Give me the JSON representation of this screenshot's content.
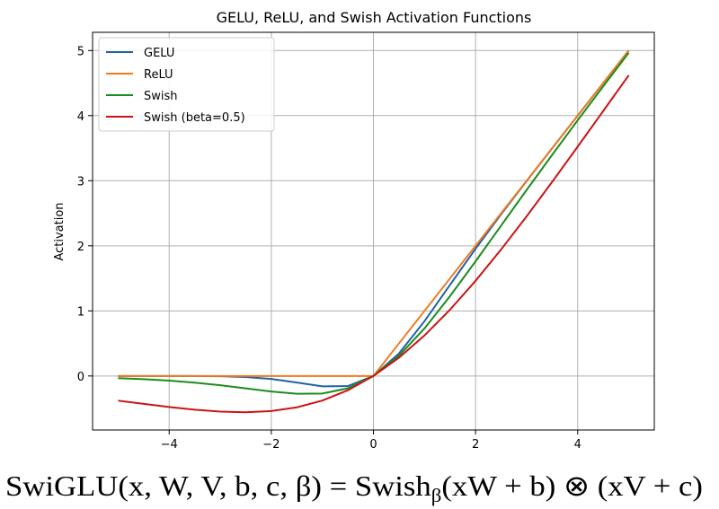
{
  "chart_data": {
    "type": "line",
    "title": "GELU, ReLU, and Swish Activation Functions",
    "ylabel": "Activation",
    "x": [
      -5,
      -4.5,
      -4,
      -3.5,
      -3,
      -2.5,
      -2,
      -1.5,
      -1,
      -0.5,
      0,
      0.5,
      1,
      1.5,
      2,
      2.5,
      3,
      3.5,
      4,
      4.5,
      5
    ],
    "series": [
      {
        "name": "GELU",
        "color": "#1f62a8",
        "values": [
          0,
          0,
          -0.0001,
          -0.0008,
          -0.004,
          -0.0155,
          -0.0455,
          -0.1002,
          -0.1587,
          -0.1543,
          0,
          0.3457,
          0.8413,
          1.3998,
          1.9545,
          2.4845,
          2.996,
          3.4992,
          3.9999,
          4.5,
          5
        ]
      },
      {
        "name": "ReLU",
        "color": "#f07a1e",
        "values": [
          0,
          0,
          0,
          0,
          0,
          0,
          0,
          0,
          0,
          0,
          0,
          0.5,
          1,
          1.5,
          2,
          2.5,
          3,
          3.5,
          4,
          4.5,
          5
        ]
      },
      {
        "name": "Swish",
        "color": "#1c8c1c",
        "values": [
          -0.0335,
          -0.0495,
          -0.0719,
          -0.1026,
          -0.1423,
          -0.1896,
          -0.2384,
          -0.2736,
          -0.2689,
          -0.1888,
          0,
          0.3112,
          0.7311,
          1.2264,
          1.7616,
          2.3104,
          2.8577,
          3.3974,
          3.9281,
          4.4505,
          4.9665
        ]
      },
      {
        "name": "Swish (beta=0.5)",
        "color": "#cc1414",
        "values": [
          -0.3793,
          -0.4288,
          -0.4768,
          -0.518,
          -0.5473,
          -0.5568,
          -0.5379,
          -0.4812,
          -0.3775,
          -0.2189,
          0,
          0.2811,
          0.6225,
          1.0188,
          1.4621,
          1.9432,
          2.4527,
          2.982,
          3.5232,
          4.0712,
          4.6207
        ]
      }
    ],
    "xlim": [
      -5.5,
      5.5
    ],
    "xticks": [
      {
        "value": -4,
        "label": "−4"
      },
      {
        "value": -2,
        "label": "−2"
      },
      0,
      2,
      4
    ],
    "ylim": [
      -0.83,
      5.28
    ],
    "yticks": [
      0,
      1,
      2,
      3,
      4,
      5
    ],
    "grid": true,
    "legend": "upper left"
  },
  "formula": {
    "main": "SwiGLU(x, W, V, b, c, β) = Swish",
    "subscript": "β",
    "rest": "(xW + b) ⊗ (xV + c)"
  }
}
